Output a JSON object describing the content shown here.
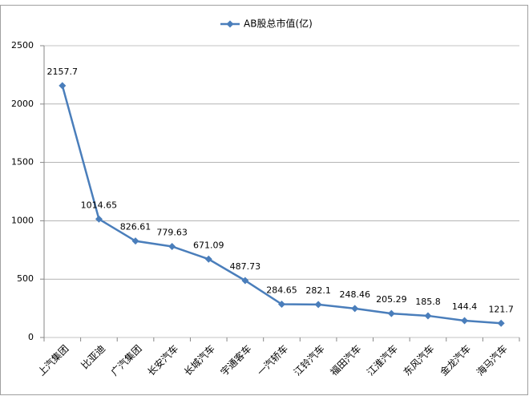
{
  "chart_data": {
    "type": "line",
    "categories": [
      "上汽集团",
      "比亚迪",
      "广汽集团",
      "长安汽车",
      "长城汽车",
      "宇通客车",
      "一汽轿车",
      "江铃汽车",
      "福田汽车",
      "江淮汽车",
      "东风汽车",
      "金龙汽车",
      "海马汽车"
    ],
    "series": [
      {
        "name": "AB股总市值(亿)",
        "color": "#4a7ebb",
        "values": [
          2157.7,
          1014.65,
          826.61,
          779.63,
          671.09,
          487.73,
          284.65,
          282.1,
          248.46,
          205.29,
          185.8,
          144.4,
          121.7
        ]
      }
    ],
    "ylim": [
      0,
      2500
    ],
    "yticks": [
      0,
      500,
      1000,
      1500,
      2000,
      2500
    ],
    "grid": true,
    "legend": "top"
  }
}
